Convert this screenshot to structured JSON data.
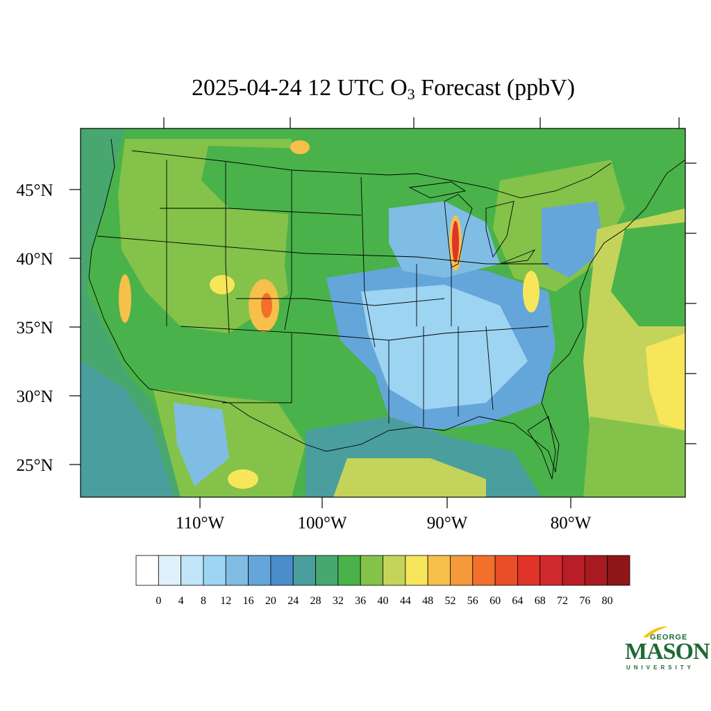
{
  "title": {
    "prefix": "2025-04-24 12 UTC O",
    "subscript": "3",
    "suffix": " Forecast (ppbV)"
  },
  "lat_labels": [
    "45°N",
    "40°N",
    "35°N",
    "30°N",
    "25°N"
  ],
  "lon_labels": [
    "110°W",
    "100°W",
    "90°W",
    "80°W"
  ],
  "colorbar": {
    "colors": [
      "#ffffff",
      "#dff1fb",
      "#c0e5f8",
      "#9dd4f2",
      "#80bde4",
      "#64a6da",
      "#4b8ccb",
      "#4a9e9e",
      "#48a76f",
      "#4ab24a",
      "#84c24a",
      "#c4d45a",
      "#f7e65a",
      "#f6c04a",
      "#f49a3c",
      "#f26f2c",
      "#e94e28",
      "#e03428",
      "#d12a2e",
      "#b91e26",
      "#a71b20",
      "#8e1518"
    ],
    "labels": [
      "0",
      "4",
      "8",
      "12",
      "16",
      "20",
      "24",
      "28",
      "32",
      "36",
      "40",
      "44",
      "48",
      "52",
      "56",
      "60",
      "64",
      "68",
      "72",
      "76",
      "80"
    ]
  },
  "logo": {
    "line1": "GEORGE",
    "line2": "MASON",
    "line3": "UNIVERSITY",
    "accent_color": "#f5c400",
    "brand_color": "#1d6a34"
  }
}
